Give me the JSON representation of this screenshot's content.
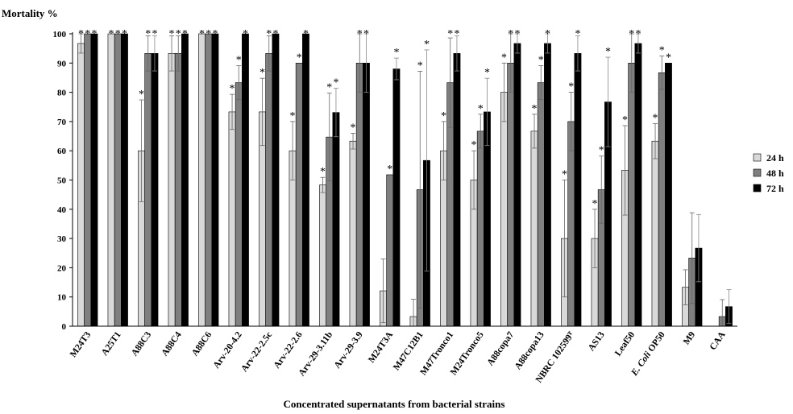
{
  "chart_data": {
    "type": "bar",
    "title": "",
    "ylabel": "Mortality %",
    "xlabel": "Concentrated supernatants from bacterial strains",
    "ylim": [
      0,
      100
    ],
    "yticks": [
      0,
      10,
      20,
      30,
      40,
      50,
      60,
      70,
      80,
      90,
      100
    ],
    "legend_position": "right",
    "categories": [
      "M24T3",
      "A25T1",
      "A88C3",
      "A88C4",
      "A88C6",
      "Arv-20-4.2",
      "Arv-22-2.5c",
      "Arv-22-2.6",
      "Arv-29-3.11b",
      "Arv-29-3.9",
      "M24T3A",
      "M47C12B1",
      "M47Tronco1",
      "M24Tronco5",
      "A88copa7",
      "A88copa13",
      "NBRC 102599ᵀ",
      "AS13",
      "Leaf50",
      "E. Coli OP50",
      "M9",
      "CAA"
    ],
    "series": [
      {
        "name": "24 h",
        "color": "#d9d9d9",
        "values": [
          96.7,
          100,
          60,
          93.3,
          100,
          73.3,
          73.3,
          60,
          48.3,
          63.3,
          12.1,
          3.3,
          60,
          50,
          80,
          66.7,
          30,
          30,
          53.3,
          63.3,
          13.3,
          0
        ],
        "errors": [
          3.3,
          0,
          17.4,
          6,
          0,
          6,
          11.5,
          10,
          2.6,
          2.7,
          10.9,
          5.9,
          10,
          10,
          10,
          5.8,
          20,
          10,
          15.3,
          6,
          6,
          0
        ],
        "significant": [
          true,
          true,
          true,
          true,
          true,
          true,
          true,
          true,
          true,
          true,
          false,
          false,
          true,
          true,
          true,
          true,
          true,
          true,
          true,
          true,
          false,
          false
        ]
      },
      {
        "name": "48 h",
        "color": "#7f7f7f",
        "values": [
          100,
          100,
          93.3,
          93.3,
          100,
          83.3,
          93.3,
          90,
          64.7,
          90,
          51.8,
          46.7,
          83.3,
          66.7,
          90,
          83.3,
          70,
          46.7,
          90,
          86.7,
          23.3,
          3.3
        ],
        "errors": [
          0,
          0,
          6,
          6,
          0,
          5.8,
          6,
          0,
          15,
          10,
          0,
          40.5,
          15.3,
          5.8,
          10,
          5.8,
          10,
          11.5,
          10,
          5.7,
          15.5,
          5.8
        ],
        "significant": [
          true,
          true,
          true,
          true,
          true,
          true,
          true,
          true,
          true,
          true,
          true,
          true,
          true,
          true,
          true,
          true,
          true,
          true,
          true,
          true,
          false,
          false
        ]
      },
      {
        "name": "72 h",
        "color": "#000000",
        "values": [
          100,
          100,
          93.3,
          100,
          100,
          100,
          100,
          100,
          73.1,
          90,
          88,
          56.7,
          93.3,
          73.3,
          96.7,
          96.7,
          93.3,
          76.7,
          96.7,
          90,
          26.7,
          6.7
        ],
        "errors": [
          0,
          0,
          6,
          0,
          0,
          0,
          0,
          0,
          8.3,
          10,
          3.7,
          37.8,
          6,
          11.5,
          3.3,
          3.3,
          6,
          15.3,
          3.3,
          0,
          11.5,
          5.8
        ],
        "significant": [
          true,
          true,
          true,
          true,
          true,
          true,
          true,
          true,
          true,
          true,
          true,
          true,
          true,
          true,
          true,
          true,
          true,
          true,
          true,
          true,
          false,
          false
        ]
      }
    ]
  }
}
